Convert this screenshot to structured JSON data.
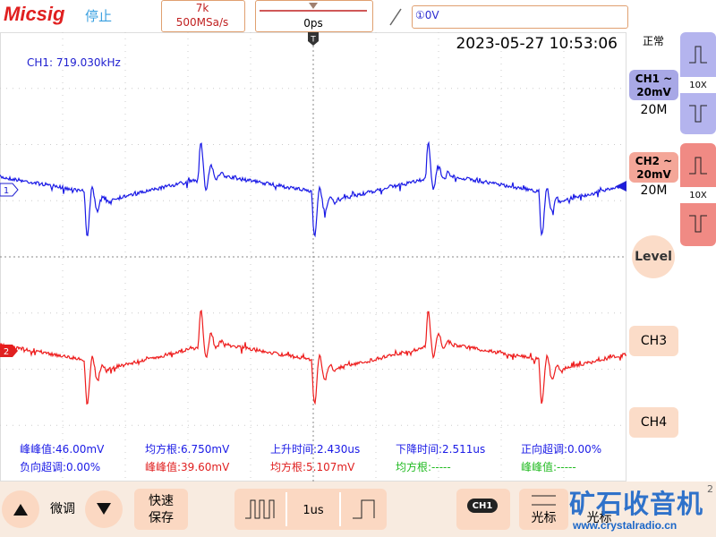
{
  "header": {
    "brand": "Micsig",
    "status": "停止",
    "memory_depth": "7k",
    "sample_rate": "500MSa/s",
    "time_offset": "0ps",
    "trigger_level": "①0V"
  },
  "screen": {
    "timestamp": "2023-05-27 10:53:06",
    "frequency": "CH1: 719.030kHz",
    "markers": {
      "ch1": "1",
      "ch2": "2",
      "trigger": "T"
    }
  },
  "measurements": [
    [
      "峰峰值:46.00mV",
      "均方根:6.750mV",
      "上升时间:2.430us",
      "下降时间:2.511us",
      "正向超调:0.00%"
    ],
    [
      "负向超调:0.00%",
      "峰峰值:39.60mV",
      "均方根:5.107mV",
      "均方根:-----",
      "峰峰值:-----"
    ]
  ],
  "right_panel": {
    "mode": "正常",
    "ch1": {
      "label": "CH1 ~",
      "scale": "20mV",
      "bandwidth": "20M",
      "probe": "10X"
    },
    "ch2": {
      "label": "CH2 ~",
      "scale": "20mV",
      "bandwidth": "20M",
      "probe": "10X"
    },
    "level": "Level",
    "ch3": "CH3",
    "ch4": "CH4"
  },
  "bottom_bar": {
    "fine_adjust": "微调",
    "quick_save": [
      "快速",
      "保存"
    ],
    "timebase": "1us",
    "channel": "CH1",
    "cursor": "光标",
    "cursor_2": "光标",
    "page": "2"
  },
  "watermark": {
    "title": "矿石收音机",
    "url": "www.crystalradio.cn"
  }
}
